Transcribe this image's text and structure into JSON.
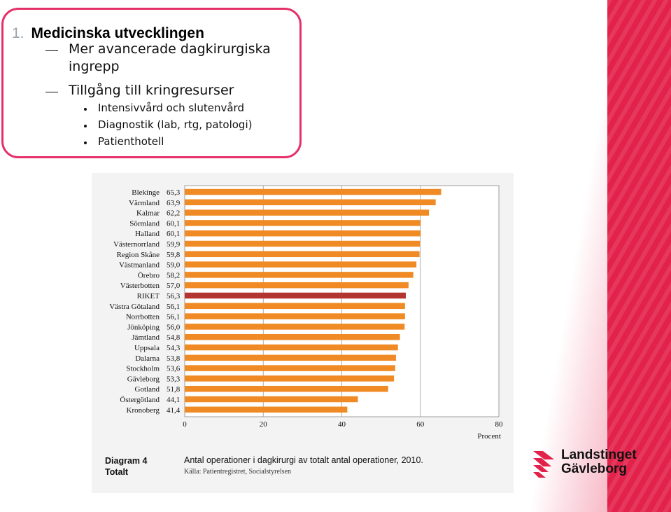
{
  "slide": {
    "title_number": "1.",
    "title": "Medicinska utvecklingen",
    "sub_items": [
      "Mer avancerade dagkirurgiska",
      "ingrepp",
      "Tillgång till kringresurser"
    ],
    "bullets": [
      "Intensivvård och slutenvård",
      "Diagnostik (lab, rtg, patologi)",
      "Patienthotell"
    ]
  },
  "figure": {
    "label_line1": "Diagram 4",
    "label_line2": "Totalt",
    "title": "Antal operationer i dagkirurgi av totalt antal operationer, 2010.",
    "source": "Källa: Patientregistret, Socialstyrelsen"
  },
  "chart_data": {
    "type": "bar",
    "orientation": "horizontal",
    "categories": [
      "Blekinge",
      "Värmland",
      "Kalmar",
      "Sörmland",
      "Halland",
      "Västernorrland",
      "Region Skåne",
      "Västmanland",
      "Örebro",
      "Västerbotten",
      "RIKET",
      "Västra Götaland",
      "Norrbotten",
      "Jönköping",
      "Jämtland",
      "Uppsala",
      "Dalarna",
      "Stockholm",
      "Gävleborg",
      "Gotland",
      "Östergötland",
      "Kronoberg"
    ],
    "value_labels": [
      "65,3",
      "63,9",
      "62,2",
      "60,1",
      "60,1",
      "59,9",
      "59,8",
      "59,0",
      "58,2",
      "57,0",
      "56,3",
      "56,1",
      "56,1",
      "56,0",
      "54,8",
      "54,3",
      "53,8",
      "53,6",
      "53,3",
      "51,8",
      "44,1",
      "41,4"
    ],
    "values": [
      65.3,
      63.9,
      62.2,
      60.1,
      60.1,
      59.9,
      59.8,
      59.0,
      58.2,
      57.0,
      56.3,
      56.1,
      56.1,
      56.0,
      54.8,
      54.3,
      53.8,
      53.6,
      53.3,
      51.8,
      44.1,
      41.4
    ],
    "highlight": "RIKET",
    "bar_color": "#f08a24",
    "highlight_color": "#b2352f",
    "xlim": [
      0,
      80
    ],
    "xticks": [
      "0",
      "20",
      "40",
      "60",
      "80"
    ],
    "xlabel": "Procent",
    "grid": "vertical at 20,40,60"
  },
  "logo": {
    "line1": "Landstinget",
    "line2": "Gävleborg",
    "color": "#e2224a"
  }
}
